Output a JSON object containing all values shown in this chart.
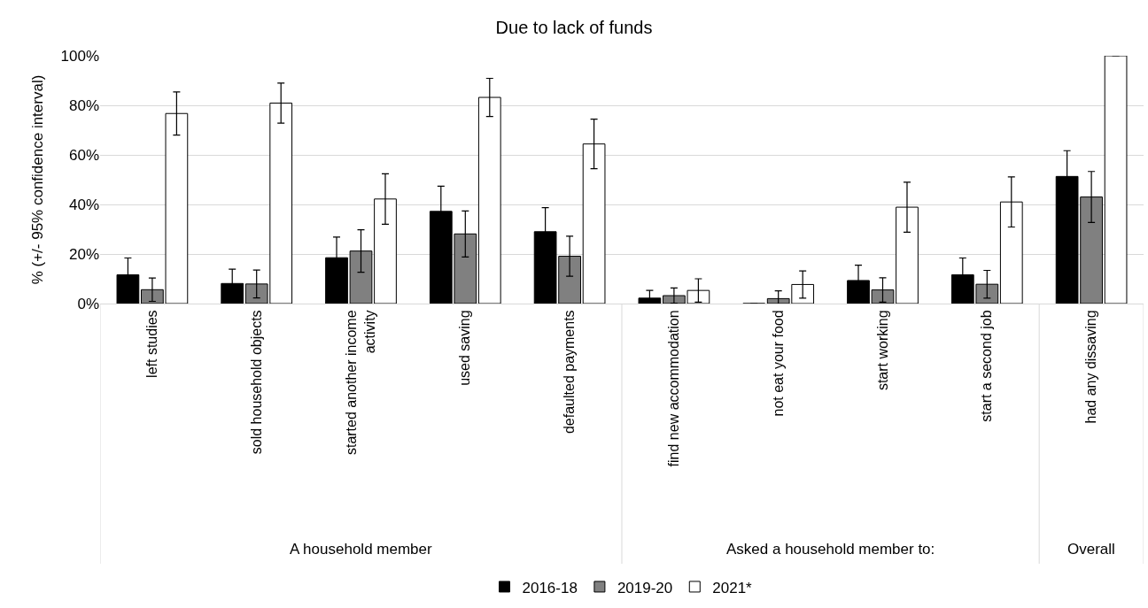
{
  "chart_data": {
    "type": "bar",
    "title": "Due to lack of funds",
    "ylabel": "% (+/- 95% confidence interval)",
    "categories": [
      "left studies",
      "sold household objects",
      "started another income activity",
      "used saving",
      "defaulted payments",
      "find new accommodation",
      "not eat your food",
      "start working",
      "start a second job",
      "had any dissaving"
    ],
    "series": [
      {
        "name": "2016-18",
        "color": "#000000",
        "values": [
          11.6,
          8.1,
          18.5,
          37.2,
          29.0,
          2.2,
          0,
          9.3,
          11.6,
          51.3
        ],
        "errors": [
          6.8,
          5.8,
          8.3,
          10.2,
          9.7,
          3.1,
          null,
          6.2,
          6.8,
          10.4
        ]
      },
      {
        "name": "2019-20",
        "color": "#808080",
        "values": [
          5.6,
          7.9,
          21.2,
          28.1,
          19.1,
          3.2,
          2.0,
          5.5,
          7.8,
          43.0
        ],
        "errors": [
          4.7,
          5.6,
          8.6,
          9.3,
          8.1,
          3.1,
          3.1,
          4.9,
          5.6,
          10.3
        ]
      },
      {
        "name": "2021*",
        "color": "#ffffff",
        "values": [
          76.7,
          80.9,
          42.2,
          83.2,
          64.4,
          5.3,
          7.7,
          38.9,
          41.0,
          100
        ],
        "errors": [
          8.7,
          8.1,
          10.2,
          7.7,
          10.0,
          4.7,
          5.5,
          10.1,
          10.1,
          null
        ]
      }
    ],
    "annotations": [
      "A household member",
      "Asked a household member to:",
      "Overall"
    ],
    "ylim": [
      0,
      100
    ],
    "yticks": [
      {
        "value": 0,
        "label": "0%"
      },
      {
        "value": 20,
        "label": "20%"
      },
      {
        "value": 40,
        "label": "40%"
      },
      {
        "value": 60,
        "label": "60%"
      },
      {
        "value": 80,
        "label": "80%"
      },
      {
        "value": 100,
        "label": "100%"
      }
    ],
    "grid": "y",
    "legend": "bottom"
  }
}
